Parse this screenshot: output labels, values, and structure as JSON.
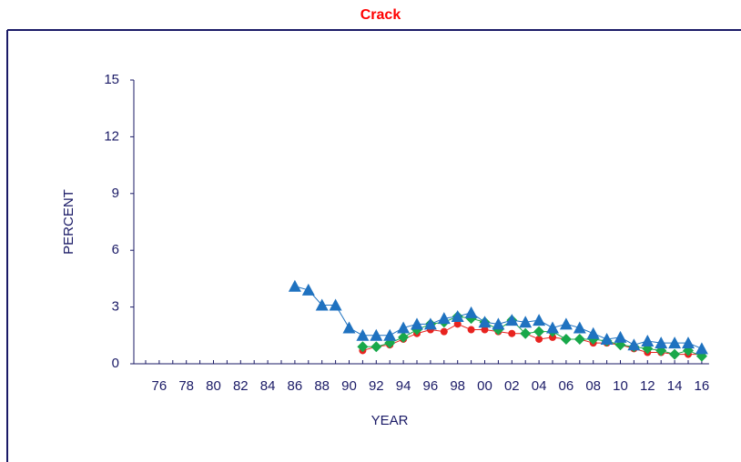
{
  "chart_data": {
    "type": "line",
    "title": "Crack",
    "xlabel": "YEAR",
    "ylabel": "PERCENT",
    "categories": [
      null,
      "76",
      null,
      "78",
      null,
      "80",
      null,
      "82",
      null,
      "84",
      null,
      "86",
      null,
      "88",
      null,
      "90",
      null,
      "92",
      null,
      "94",
      null,
      "96",
      null,
      "98",
      null,
      "00",
      null,
      "02",
      null,
      "04",
      null,
      "06",
      null,
      "08",
      null,
      "10",
      null,
      "12",
      null,
      "14",
      null,
      "16"
    ],
    "series": [
      {
        "color": "#e8231f",
        "marker": "circle",
        "values": [
          null,
          null,
          null,
          null,
          null,
          null,
          null,
          null,
          null,
          null,
          null,
          null,
          null,
          null,
          null,
          null,
          0.7,
          0.9,
          1.0,
          1.3,
          1.6,
          1.8,
          1.7,
          2.1,
          1.8,
          1.8,
          1.7,
          1.6,
          1.6,
          1.3,
          1.4,
          1.3,
          1.3,
          1.1,
          1.1,
          1.0,
          0.8,
          0.6,
          0.6,
          0.5,
          0.5,
          0.5
        ]
      },
      {
        "color": "#18a84a",
        "marker": "diamond",
        "values": [
          null,
          null,
          null,
          null,
          null,
          null,
          null,
          null,
          null,
          null,
          null,
          null,
          null,
          null,
          null,
          null,
          0.9,
          0.9,
          1.1,
          1.4,
          1.8,
          2.1,
          2.2,
          2.5,
          2.4,
          2.2,
          1.8,
          2.3,
          1.6,
          1.7,
          1.7,
          1.3,
          1.3,
          1.3,
          1.2,
          1.0,
          0.9,
          0.8,
          0.7,
          0.5,
          0.7,
          0.4
        ]
      },
      {
        "color": "#1f72c0",
        "marker": "triangle",
        "values": [
          null,
          null,
          null,
          null,
          null,
          null,
          null,
          null,
          null,
          null,
          null,
          4.1,
          3.9,
          3.1,
          3.1,
          1.9,
          1.5,
          1.5,
          1.5,
          1.9,
          2.1,
          2.1,
          2.4,
          2.5,
          2.7,
          2.2,
          2.1,
          2.3,
          2.2,
          2.3,
          1.9,
          2.1,
          1.9,
          1.6,
          1.3,
          1.4,
          1.0,
          1.2,
          1.1,
          1.1,
          1.1,
          0.8
        ]
      }
    ],
    "ylim": [
      0,
      15
    ],
    "yticks": [
      0,
      3,
      6,
      9,
      12,
      15
    ]
  }
}
